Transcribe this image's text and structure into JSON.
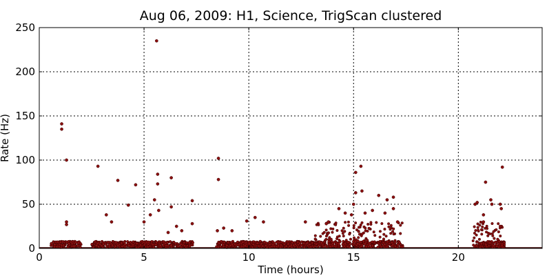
{
  "chart_data": {
    "type": "scatter",
    "title": "Aug 06, 2009: H1, Science, TrigScan clustered",
    "xlabel": "Time (hours)",
    "ylabel": "Rate (Hz)",
    "xlim": [
      0,
      24
    ],
    "ylim": [
      0,
      250
    ],
    "xticks": [
      "0",
      "5",
      "10",
      "15",
      "20"
    ],
    "yticks": [
      "0",
      "50",
      "100",
      "150",
      "200",
      "250"
    ],
    "grid": true,
    "marker_color": "#8b1010",
    "segments": [
      [
        0.55,
        2.0
      ],
      [
        2.5,
        7.35
      ],
      [
        8.45,
        13.15
      ],
      [
        13.15,
        17.35
      ],
      [
        20.7,
        22.2
      ]
    ],
    "baseline_y": 0.5,
    "points": [
      [
        1.07,
        141
      ],
      [
        1.07,
        135
      ],
      [
        1.3,
        100
      ],
      [
        1.3,
        30
      ],
      [
        1.3,
        27
      ],
      [
        2.8,
        93
      ],
      [
        3.2,
        38
      ],
      [
        3.45,
        30
      ],
      [
        3.75,
        77
      ],
      [
        4.25,
        49
      ],
      [
        4.6,
        72
      ],
      [
        5.0,
        30
      ],
      [
        5.3,
        38
      ],
      [
        5.5,
        55
      ],
      [
        5.6,
        235
      ],
      [
        5.65,
        84
      ],
      [
        5.65,
        73
      ],
      [
        5.7,
        43
      ],
      [
        6.15,
        18
      ],
      [
        6.3,
        80
      ],
      [
        6.3,
        47
      ],
      [
        6.55,
        25
      ],
      [
        6.8,
        20
      ],
      [
        7.3,
        54
      ],
      [
        7.3,
        28
      ],
      [
        8.55,
        102
      ],
      [
        8.55,
        78
      ],
      [
        8.5,
        20
      ],
      [
        8.8,
        23
      ],
      [
        9.2,
        20
      ],
      [
        9.9,
        31
      ],
      [
        10.3,
        35
      ],
      [
        10.7,
        30
      ],
      [
        12.7,
        30
      ],
      [
        13.7,
        28
      ],
      [
        13.8,
        30
      ],
      [
        14.3,
        45
      ],
      [
        14.6,
        40
      ],
      [
        14.9,
        38
      ],
      [
        15.0,
        50
      ],
      [
        15.1,
        86
      ],
      [
        15.1,
        63
      ],
      [
        15.35,
        93
      ],
      [
        15.4,
        65
      ],
      [
        15.55,
        40
      ],
      [
        15.9,
        43
      ],
      [
        16.2,
        60
      ],
      [
        16.5,
        40
      ],
      [
        16.6,
        55
      ],
      [
        16.9,
        58
      ],
      [
        16.9,
        45
      ],
      [
        17.1,
        30
      ],
      [
        20.8,
        50
      ],
      [
        20.9,
        52
      ],
      [
        21.2,
        38
      ],
      [
        21.2,
        30
      ],
      [
        21.3,
        75
      ],
      [
        21.55,
        55
      ],
      [
        21.6,
        50
      ],
      [
        22.0,
        50
      ],
      [
        22.05,
        45
      ],
      [
        22.1,
        92
      ]
    ]
  }
}
